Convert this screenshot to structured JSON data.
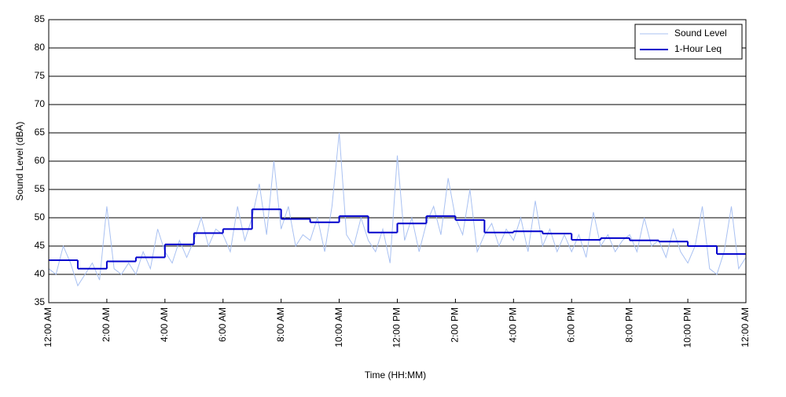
{
  "chart_data": {
    "type": "line",
    "x_label": "Time (HH:MM)",
    "y_label": "Sound Level (dBA)",
    "xlim": [
      0,
      24
    ],
    "ylim": [
      35,
      85
    ],
    "yticks": [
      35,
      40,
      45,
      50,
      55,
      60,
      65,
      70,
      75,
      80,
      85
    ],
    "xticks": [
      {
        "value": 0,
        "label": "12:00 AM"
      },
      {
        "value": 2,
        "label": "2:00 AM"
      },
      {
        "value": 4,
        "label": "4:00 AM"
      },
      {
        "value": 6,
        "label": "6:00 AM"
      },
      {
        "value": 8,
        "label": "8:00 AM"
      },
      {
        "value": 10,
        "label": "10:00 AM"
      },
      {
        "value": 12,
        "label": "12:00 PM"
      },
      {
        "value": 14,
        "label": "2:00 PM"
      },
      {
        "value": 16,
        "label": "4:00 PM"
      },
      {
        "value": 18,
        "label": "6:00 PM"
      },
      {
        "value": 20,
        "label": "8:00 PM"
      },
      {
        "value": 22,
        "label": "10:00 PM"
      },
      {
        "value": 24,
        "label": "12:00 AM"
      }
    ],
    "grid": true,
    "legend": "top-right",
    "series": [
      {
        "name": "Sound Level",
        "color": "#a9c1f2",
        "x": [
          0,
          0.25,
          0.5,
          0.75,
          1,
          1.25,
          1.5,
          1.75,
          2,
          2.25,
          2.5,
          2.75,
          3,
          3.25,
          3.5,
          3.75,
          4,
          4.25,
          4.5,
          4.75,
          5,
          5.25,
          5.5,
          5.75,
          6,
          6.25,
          6.5,
          6.75,
          7,
          7.25,
          7.5,
          7.75,
          8,
          8.25,
          8.5,
          8.75,
          9,
          9.25,
          9.5,
          9.75,
          10,
          10.25,
          10.5,
          10.75,
          11,
          11.25,
          11.5,
          11.75,
          12,
          12.25,
          12.5,
          12.75,
          13,
          13.25,
          13.5,
          13.75,
          14,
          14.25,
          14.5,
          14.75,
          15,
          15.25,
          15.5,
          15.75,
          16,
          16.25,
          16.5,
          16.75,
          17,
          17.25,
          17.5,
          17.75,
          18,
          18.25,
          18.5,
          18.75,
          19,
          19.25,
          19.5,
          19.75,
          20,
          20.25,
          20.5,
          20.75,
          21,
          21.25,
          21.5,
          21.75,
          22,
          22.25,
          22.5,
          22.75,
          23,
          23.25,
          23.5,
          23.75,
          24
        ],
        "values": [
          41,
          40,
          45,
          42,
          38,
          40,
          42,
          39,
          52,
          41,
          40,
          42,
          40,
          44,
          41,
          48,
          44,
          42,
          46,
          43,
          46,
          50,
          45,
          48,
          47,
          44,
          52,
          46,
          50,
          56,
          47,
          60,
          48,
          52,
          45,
          47,
          46,
          50,
          44,
          52,
          65,
          47,
          45,
          50,
          46,
          44,
          48,
          42,
          61,
          46,
          50,
          44,
          49,
          52,
          47,
          57,
          50,
          47,
          55,
          44,
          47,
          49,
          45,
          48,
          46,
          50,
          44,
          53,
          45,
          48,
          44,
          47,
          44,
          47,
          43,
          51,
          45,
          47,
          44,
          46,
          47,
          44,
          50,
          45,
          46,
          43,
          48,
          44,
          42,
          45,
          52,
          41,
          40,
          44,
          52,
          41,
          43
        ]
      },
      {
        "name": "1-Hour Leq",
        "color": "#0000cc",
        "x": [
          0,
          1,
          2,
          3,
          4,
          5,
          6,
          7,
          8,
          9,
          10,
          11,
          12,
          13,
          14,
          15,
          16,
          17,
          18,
          19,
          20,
          21,
          22,
          23
        ],
        "values": [
          42.5,
          41,
          42.3,
          43,
          45.3,
          47.3,
          48,
          51.5,
          49.8,
          49.2,
          50.3,
          47.4,
          49,
          50.3,
          49.6,
          47.4,
          47.6,
          47.2,
          46.1,
          46.4,
          46,
          45.8,
          45,
          43.6
        ]
      }
    ]
  }
}
